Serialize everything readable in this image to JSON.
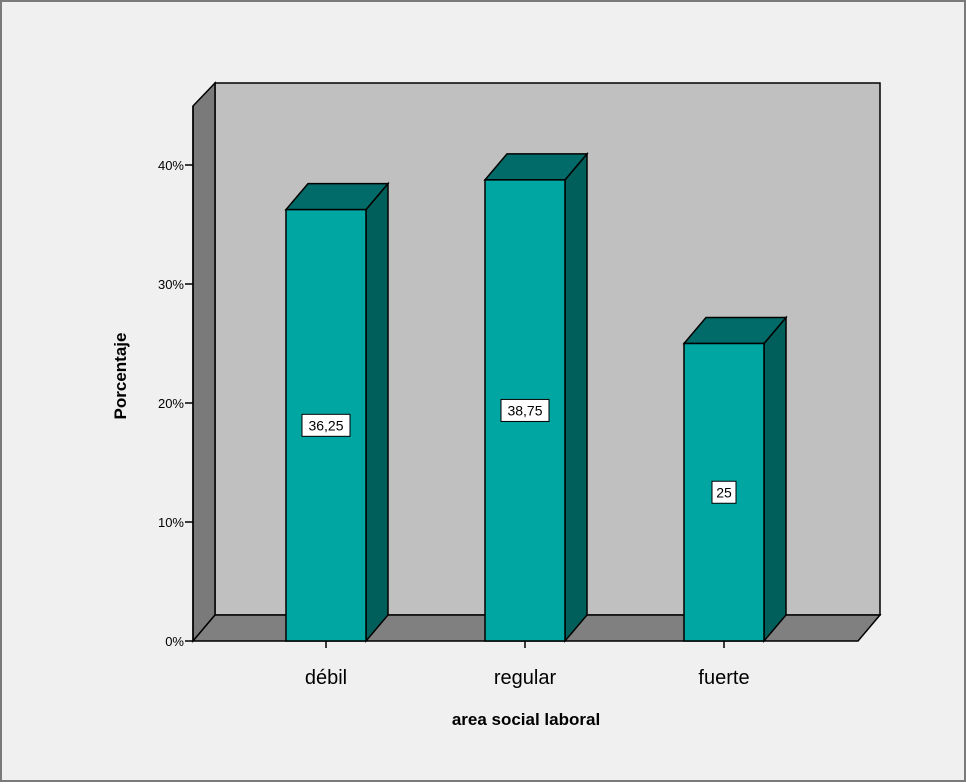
{
  "chart_data": {
    "type": "bar",
    "style": "3d",
    "categories": [
      "débil",
      "regular",
      "fuerte"
    ],
    "values": [
      36.25,
      38.75,
      25
    ],
    "data_labels": [
      "36,25",
      "38,75",
      "25"
    ],
    "y_ticks": [
      "0%",
      "10%",
      "20%",
      "30%",
      "40%"
    ],
    "xlabel": "area social laboral",
    "ylabel": "Porcentaje",
    "ylim": [
      0,
      40
    ],
    "grid": false,
    "colors": {
      "bar_front": "#00a6a2",
      "bar_top": "#006b68",
      "bar_side": "#005e5b",
      "plot_back": "#c0c0c0",
      "plot_floor": "#808080",
      "plot_left_wall": "#7a7a7a",
      "background": "#f0f0f0"
    }
  }
}
